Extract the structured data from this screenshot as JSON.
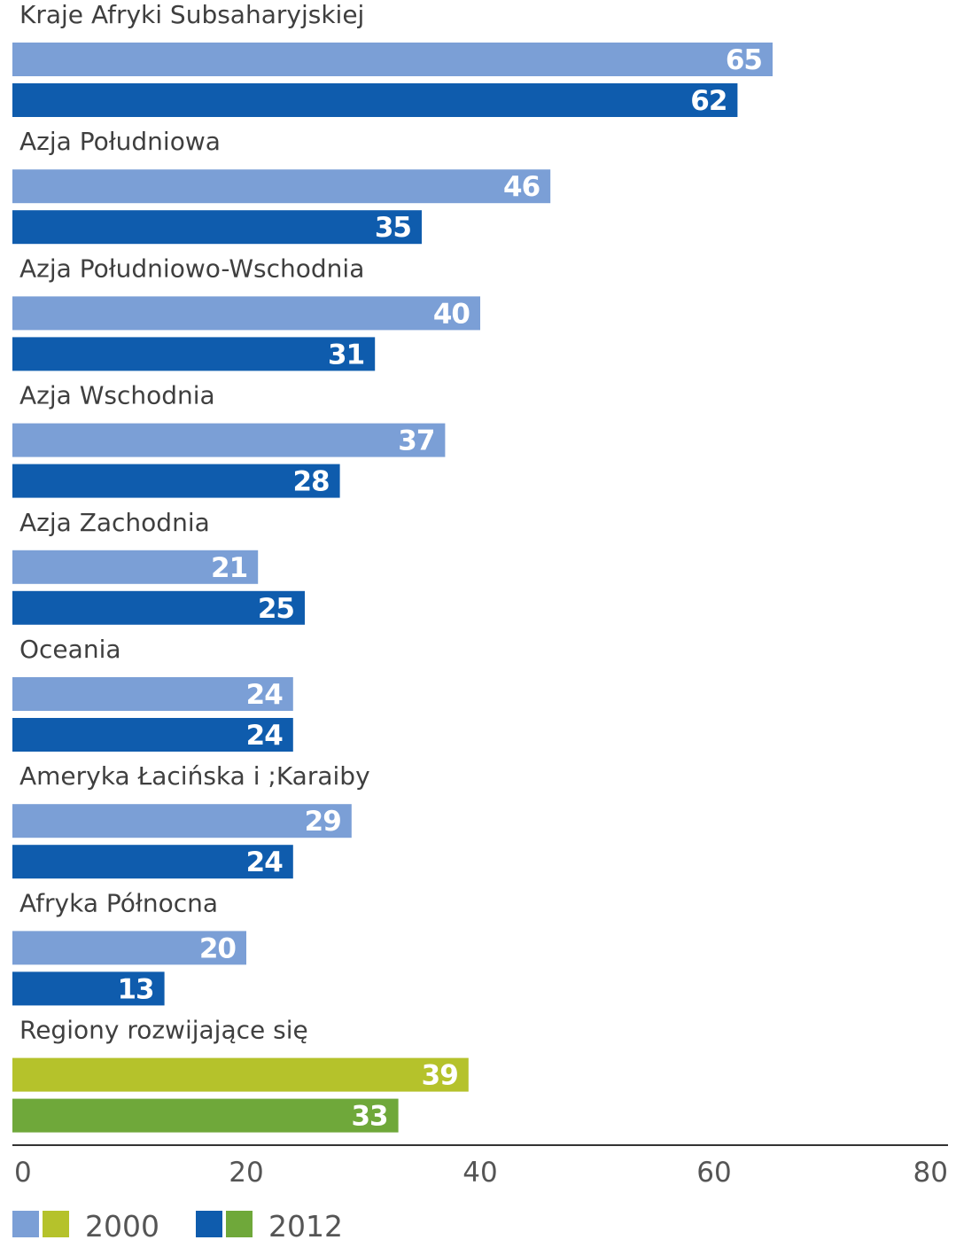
{
  "chart_data": {
    "type": "bar",
    "orientation": "horizontal",
    "categories": [
      "Kraje Afryki Subsaharyjskiej",
      "Azja Południowa",
      "Azja Południowo-Wschodnia",
      "Azja Wschodnia",
      "Azja Zachodnia",
      "Oceania",
      "Ameryka Łacińska i ;Karaiby",
      "Afryka Północna",
      "Regiony rozwijające się"
    ],
    "series": [
      {
        "name": "2000",
        "values": [
          65,
          46,
          40,
          37,
          21,
          24,
          29,
          20,
          39
        ]
      },
      {
        "name": "2012",
        "values": [
          62,
          35,
          31,
          28,
          25,
          24,
          24,
          13,
          33
        ]
      }
    ],
    "xlim": [
      0,
      80
    ],
    "xticks": [
      "0",
      "20",
      "40",
      "60",
      "80"
    ],
    "grid": false,
    "legend_position": "bottom-left",
    "legend": [
      {
        "label": "2000",
        "colors": [
          "#7b9fd6",
          "#b5c22b"
        ]
      },
      {
        "label": "2012",
        "colors": [
          "#0f5cad",
          "#6fa83a"
        ]
      }
    ],
    "colors": {
      "regional_2000": "#7b9fd6",
      "regional_2012": "#0f5cad",
      "aggregate_2000": "#b5c22b",
      "aggregate_2012": "#6fa83a",
      "axis": "#333333"
    },
    "highlighted_category": "Regiony rozwijające się"
  }
}
